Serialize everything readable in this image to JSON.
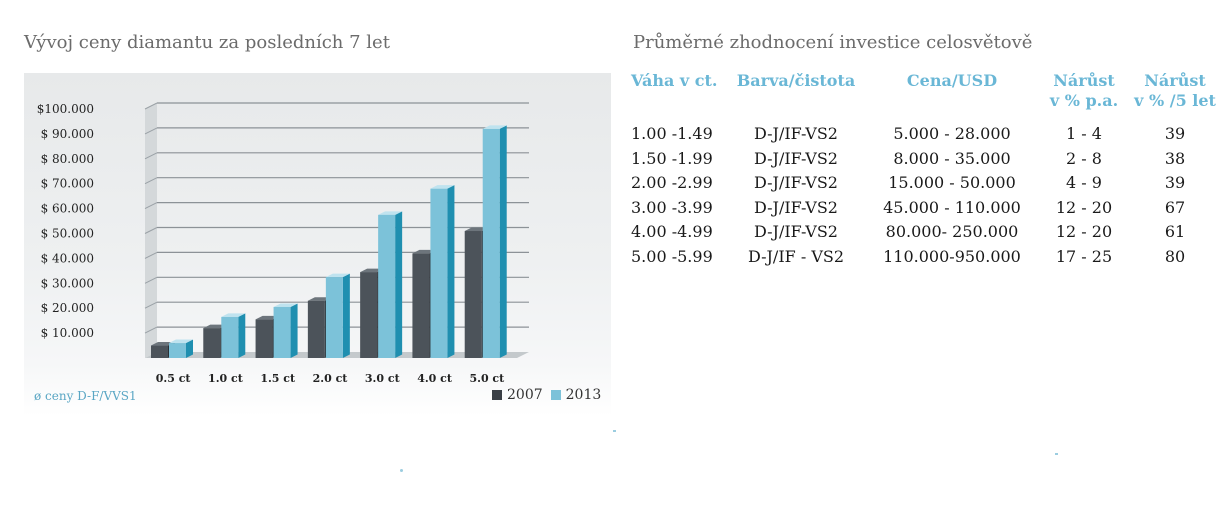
{
  "left_title": "Vývoj ceny diamantu za posledních 7 let",
  "right_title": "Průměrné zhodnocení investice celosvětově",
  "chart_data": {
    "type": "bar",
    "categories": [
      "0.5 ct",
      "1.0 ct",
      "1.5 ct",
      "2.0 ct",
      "3.0 ct",
      "4.0 ct",
      "5.0 ct"
    ],
    "series": [
      {
        "name": "2007",
        "values": [
          5000,
          12000,
          15500,
          23000,
          34500,
          42000,
          51000
        ],
        "color": "#3a3f45"
      },
      {
        "name": "2013",
        "values": [
          6000,
          16500,
          20500,
          32500,
          57500,
          68000,
          92000
        ],
        "color": "#7cc2d9"
      }
    ],
    "y_ticks": [
      "$100.000",
      "$  90.000",
      "$  80.000",
      "$  70.000",
      "$  60.000",
      "$  50.000",
      "$  40.000",
      "$  30.000",
      "$  20.000",
      "$  10.000"
    ],
    "ylim": [
      0,
      100000
    ],
    "grid": true,
    "legend_position": "bottom-right",
    "footnote": "ø ceny D-F/VVS1",
    "title": "",
    "xlabel": "",
    "ylabel": ""
  },
  "table": {
    "headers": [
      "Váha v ct.",
      "Barva/čistota",
      "Cena/USD",
      "Nárůst\nv % p.a.",
      "Nárůst\nv % /5 let"
    ],
    "rows": [
      [
        "1.00 -1.49",
        "D-J/IF-VS2",
        "5.000  - 28.000",
        "1 - 4",
        "39"
      ],
      [
        "1.50 -1.99",
        "D-J/IF-VS2",
        "8.000 - 35.000",
        "2 - 8",
        "38"
      ],
      [
        "2.00 -2.99",
        "D-J/IF-VS2",
        "15.000 - 50.000",
        "4 - 9",
        "39"
      ],
      [
        "3.00 -3.99",
        "D-J/IF-VS2",
        "45.000 - 110.000",
        "12  - 20",
        "67"
      ],
      [
        "4.00 -4.99",
        "D-J/IF-VS2",
        "80.000- 250.000",
        "12  - 20",
        "61"
      ],
      [
        "5.00 -5.99",
        "D-J/IF - VS2",
        "110.000-950.000",
        "17  - 25",
        "80"
      ]
    ]
  }
}
